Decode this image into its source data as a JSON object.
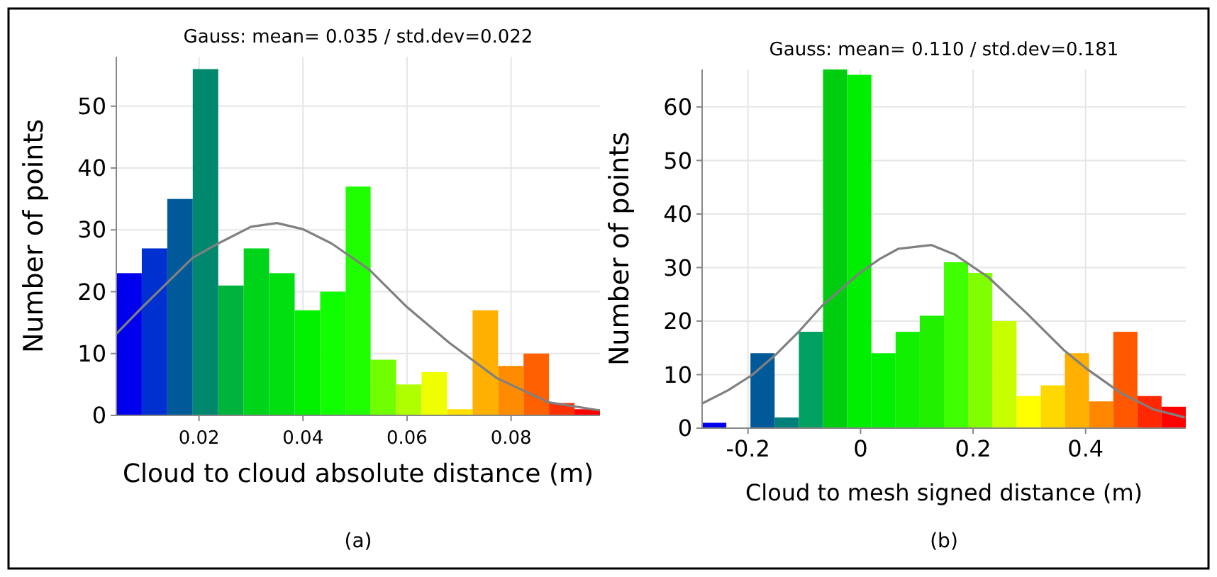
{
  "chart_data": [
    {
      "type": "histogram",
      "title": "Gauss: mean= 0.035 / std.dev=0.022",
      "xlabel": "Cloud to cloud absolute distance (m)",
      "ylabel": "Number of points",
      "annotations": [
        "(a)"
      ],
      "bins": [
        0.0041,
        0.009,
        0.0139,
        0.0188,
        0.0237,
        0.0286,
        0.0335,
        0.0384,
        0.0433,
        0.0482,
        0.053,
        0.0579,
        0.0628,
        0.0677,
        0.0726,
        0.0775,
        0.0824,
        0.0873,
        0.0922,
        0.0971
      ],
      "series": [
        {
          "values": [
            23,
            27,
            35,
            56,
            21,
            27,
            23,
            17,
            20,
            37,
            9,
            5,
            7,
            1,
            17,
            8,
            10,
            2,
            1
          ],
          "colors": [
            "#0000ee",
            "#0030d0",
            "#005a9a",
            "#00886e",
            "#00b33c",
            "#00d41a",
            "#00e010",
            "#00f000",
            "#10ff00",
            "#20ff00",
            "#70ff00",
            "#b0ff00",
            "#f0ff00",
            "#ffe000",
            "#ffb000",
            "#ff8c00",
            "#ff6000",
            "#ff3000",
            "#ff0000"
          ]
        },
        {
          "type": "line",
          "color": "#808080",
          "x": [
            0.0041,
            0.0091,
            0.0188,
            0.0237,
            0.03,
            0.035,
            0.04,
            0.0455,
            0.0527,
            0.06,
            0.0682,
            0.0773,
            0.0873,
            0.0971
          ],
          "values": [
            13.2,
            17.5,
            25.5,
            27.8,
            30.5,
            31.1,
            30.1,
            27.8,
            23.6,
            17.5,
            11.7,
            6.0,
            2.1,
            0.8
          ]
        }
      ],
      "xlim": [
        0.0041,
        0.0971
      ],
      "xticks": [
        0.02,
        0.04,
        0.06,
        0.08
      ],
      "ylim": [
        0,
        58
      ],
      "yticks": [
        0,
        10,
        20,
        30,
        40,
        50
      ],
      "grid": true,
      "marker": "none"
    },
    {
      "type": "histogram",
      "title": "Gauss: mean= 0.110 / std.dev=0.181",
      "xlabel": "Cloud to mesh signed distance (m)",
      "ylabel": "Number of points",
      "annotations": [
        "(b)"
      ],
      "bins": [
        -0.2815,
        -0.2385,
        -0.1956,
        -0.1526,
        -0.1096,
        -0.0666,
        -0.0237,
        0.0193,
        0.0623,
        0.1053,
        0.1483,
        0.1912,
        0.2342,
        0.2772,
        0.3202,
        0.3631,
        0.4061,
        0.4491,
        0.4921,
        0.535,
        0.578
      ],
      "series": [
        {
          "values": [
            1,
            0,
            14,
            2,
            18,
            67,
            66,
            14,
            18,
            21,
            31,
            29,
            20,
            6,
            8,
            14,
            5,
            18,
            6,
            4
          ],
          "colors": [
            "#0000ee",
            "#0030c0",
            "#005a9a",
            "#00807a",
            "#00a060",
            "#00cc10",
            "#00ee00",
            "#00f000",
            "#10f000",
            "#20f000",
            "#40ff00",
            "#80ff00",
            "#c8ff00",
            "#ffff00",
            "#ffd800",
            "#ffb000",
            "#ff8800",
            "#ff5800",
            "#ff2800",
            "#ff0000"
          ]
        },
        {
          "type": "line",
          "color": "#808080",
          "x": [
            -0.2815,
            -0.235,
            -0.193,
            -0.151,
            -0.109,
            -0.067,
            0,
            0.034,
            0.067,
            0.126,
            0.168,
            0.227,
            0.294,
            0.361,
            0.403,
            0.462,
            0.521,
            0.576
          ],
          "values": [
            4.6,
            7.1,
            9.9,
            13.7,
            18.1,
            23,
            29.1,
            31.6,
            33.5,
            34.2,
            32.4,
            28.2,
            21.6,
            14.6,
            11.0,
            6.6,
            3.5,
            2.0
          ]
        }
      ],
      "xlim": [
        -0.2815,
        0.578
      ],
      "xticks": [
        -0.2,
        0,
        0.2,
        0.4
      ],
      "ylim": [
        0,
        67
      ],
      "yticks": [
        0,
        10,
        20,
        30,
        40,
        50,
        60
      ],
      "grid": true,
      "marker": "none"
    }
  ]
}
